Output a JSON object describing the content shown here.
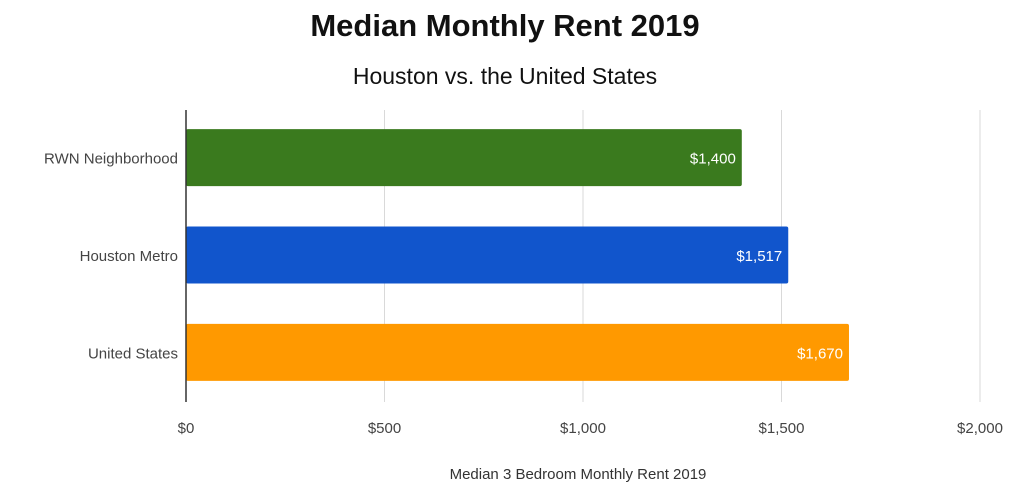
{
  "chart_data": {
    "type": "bar",
    "orientation": "horizontal",
    "title": "Median Monthly Rent 2019",
    "subtitle": "Houston vs. the United States",
    "xlabel": "Median 3 Bedroom Monthly Rent 2019",
    "ylabel": "",
    "categories": [
      "RWN Neighborhood",
      "Houston Metro",
      "United States"
    ],
    "values": [
      1400,
      1517,
      1670
    ],
    "data_labels": [
      "$1,400",
      "$1,517",
      "$1,670"
    ],
    "colors": [
      "#3a7a1e",
      "#1155cc",
      "#ff9900"
    ],
    "xlim": [
      0,
      2000
    ],
    "x_ticks": [
      0,
      500,
      1000,
      1500,
      2000
    ],
    "x_tick_labels": [
      "$0",
      "$500",
      "$1,000",
      "$1,500",
      "$2,000"
    ],
    "grid": true,
    "legend": "none"
  }
}
